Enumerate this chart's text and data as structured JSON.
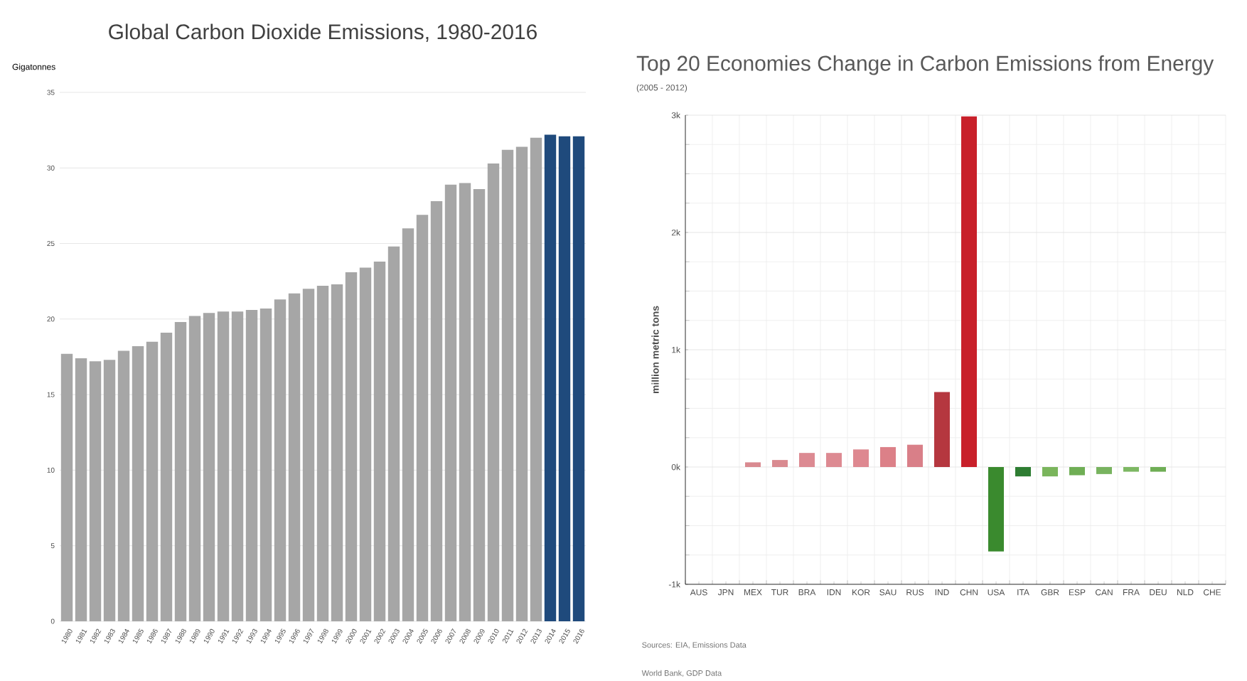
{
  "chart_data": [
    {
      "type": "bar",
      "title": "Global Carbon Dioxide Emissions, 1980-2016",
      "ylabel": "Gigatonnes",
      "categories": [
        "1980",
        "1981",
        "1982",
        "1983",
        "1984",
        "1985",
        "1986",
        "1987",
        "1988",
        "1989",
        "1990",
        "1991",
        "1992",
        "1993",
        "1994",
        "1995",
        "1996",
        "1997",
        "1998",
        "1999",
        "2000",
        "2001",
        "2002",
        "2003",
        "2004",
        "2005",
        "2006",
        "2007",
        "2008",
        "2009",
        "2010",
        "2011",
        "2012",
        "2013",
        "2014",
        "2015",
        "2016"
      ],
      "values": [
        17.7,
        17.4,
        17.2,
        17.3,
        17.9,
        18.2,
        18.5,
        19.1,
        19.8,
        20.2,
        20.4,
        20.5,
        20.5,
        20.6,
        20.7,
        21.3,
        21.7,
        22.0,
        22.2,
        22.3,
        23.1,
        23.4,
        23.8,
        24.8,
        26.0,
        26.9,
        27.8,
        28.9,
        29.0,
        28.6,
        30.3,
        31.2,
        31.4,
        32.0,
        32.2,
        32.1,
        32.1
      ],
      "colors": [
        "#a6a6a6",
        "#a6a6a6",
        "#a6a6a6",
        "#a6a6a6",
        "#a6a6a6",
        "#a6a6a6",
        "#a6a6a6",
        "#a6a6a6",
        "#a6a6a6",
        "#a6a6a6",
        "#a6a6a6",
        "#a6a6a6",
        "#a6a6a6",
        "#a6a6a6",
        "#a6a6a6",
        "#a6a6a6",
        "#a6a6a6",
        "#a6a6a6",
        "#a6a6a6",
        "#a6a6a6",
        "#a6a6a6",
        "#a6a6a6",
        "#a6a6a6",
        "#a6a6a6",
        "#a6a6a6",
        "#a6a6a6",
        "#a6a6a6",
        "#a6a6a6",
        "#a6a6a6",
        "#a6a6a6",
        "#a6a6a6",
        "#a6a6a6",
        "#a6a6a6",
        "#a6a6a6",
        "#1f4a7c",
        "#1f4a7c",
        "#1f4a7c"
      ],
      "ylim": [
        0,
        35
      ],
      "yticks": [
        0,
        5,
        10,
        15,
        20,
        25,
        30,
        35
      ],
      "grid": "y"
    },
    {
      "type": "bar",
      "title": "Top 20 Economies Change in Carbon Emissions from Energy",
      "subtitle": "(2005 - 2012)",
      "ylabel": "million metric tons",
      "categories": [
        "AUS",
        "JPN",
        "MEX",
        "TUR",
        "BRA",
        "IDN",
        "KOR",
        "SAU",
        "RUS",
        "IND",
        "CHN",
        "USA",
        "ITA",
        "GBR",
        "ESP",
        "CAN",
        "FRA",
        "DEU",
        "NLD",
        "CHE"
      ],
      "values": [
        0,
        0,
        40,
        60,
        120,
        120,
        150,
        170,
        190,
        640,
        2990,
        -720,
        -80,
        -80,
        -70,
        -60,
        -40,
        -40,
        0,
        null
      ],
      "colors": [
        "#f7f7f7",
        "#f7f7f7",
        "#d98a90",
        "#d98a90",
        "#dc8a92",
        "#dd8a92",
        "#de8890",
        "#dc8088",
        "#d97f88",
        "#b5373f",
        "#c8202a",
        "#3a8a2e",
        "#2e7d32",
        "#7ab55c",
        "#6fae55",
        "#78b35f",
        "#7db863",
        "#6fae55",
        "#f7f7f7",
        "#f7f7f7"
      ],
      "ylim": [
        -1000,
        3000
      ],
      "yticks": [
        {
          "value": -1000,
          "label": "-1k"
        },
        {
          "value": 0,
          "label": "0k"
        },
        {
          "value": 1000,
          "label": "1k"
        },
        {
          "value": 2000,
          "label": "2k"
        },
        {
          "value": 3000,
          "label": "3k"
        }
      ],
      "grid": true,
      "annotations": [
        "Sources: EIA, Emissions Data",
        "World Bank, GDP Data"
      ]
    }
  ]
}
